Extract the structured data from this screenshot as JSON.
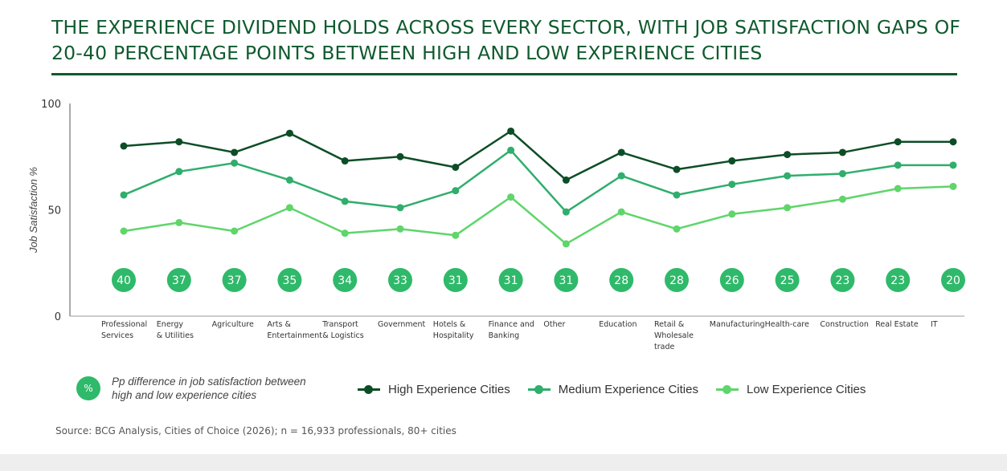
{
  "title": "The experience dividend holds across every sector, with job satisfaction gaps of 20-40 percentage points between high and low experience cities",
  "legend": {
    "badge_symbol": "%",
    "badge_note": "Pp difference in job satisfaction between high and low experience cities"
  },
  "source": "Source: BCG Analysis, Cities of Choice (2026); n = 16,933 professionals, 80+ cities",
  "colors": {
    "title": "#0f5a2e",
    "high": "#0d4d26",
    "medium": "#2fae6c",
    "low": "#5fd56a",
    "badge": "#2fb96a"
  },
  "chart_data": {
    "type": "line",
    "ylabel": "Job Satisfaction %",
    "ylim": [
      0,
      100
    ],
    "yticks": [
      "0",
      "50",
      "100"
    ],
    "grid": false,
    "legend_position": "bottom",
    "categories": [
      [
        "Professional",
        "Services"
      ],
      [
        "Energy",
        "& Utilities"
      ],
      [
        "Agriculture"
      ],
      [
        "Arts &",
        "Entertainment"
      ],
      [
        "Transport",
        "& Logistics"
      ],
      [
        "Government"
      ],
      [
        "Hotels &",
        "Hospitality"
      ],
      [
        "Finance and",
        "Banking"
      ],
      [
        "Other"
      ],
      [
        "Education"
      ],
      [
        "Retail &",
        "Wholesale",
        "trade"
      ],
      [
        "Manufacturing"
      ],
      [
        "Health-care"
      ],
      [
        "Construction"
      ],
      [
        "Real Estate"
      ],
      [
        "IT"
      ]
    ],
    "series": [
      {
        "name": "High Experience Cities",
        "color": "#0d4d26",
        "values": [
          80,
          82,
          77,
          86,
          73,
          75,
          70,
          87,
          64,
          77,
          69,
          73,
          76,
          77,
          82,
          82
        ]
      },
      {
        "name": "Medium Experience Cities",
        "color": "#2fae6c",
        "values": [
          57,
          68,
          72,
          64,
          54,
          51,
          59,
          78,
          49,
          66,
          57,
          62,
          66,
          67,
          71,
          71
        ]
      },
      {
        "name": "Low Experience Cities",
        "color": "#5fd56a",
        "values": [
          40,
          44,
          40,
          51,
          39,
          41,
          38,
          56,
          34,
          49,
          41,
          48,
          51,
          55,
          60,
          61
        ]
      }
    ],
    "gap_labels": [
      "40",
      "37",
      "37",
      "35",
      "34",
      "33",
      "31",
      "31",
      "31",
      "28",
      "28",
      "26",
      "25",
      "23",
      "23",
      "20"
    ]
  }
}
